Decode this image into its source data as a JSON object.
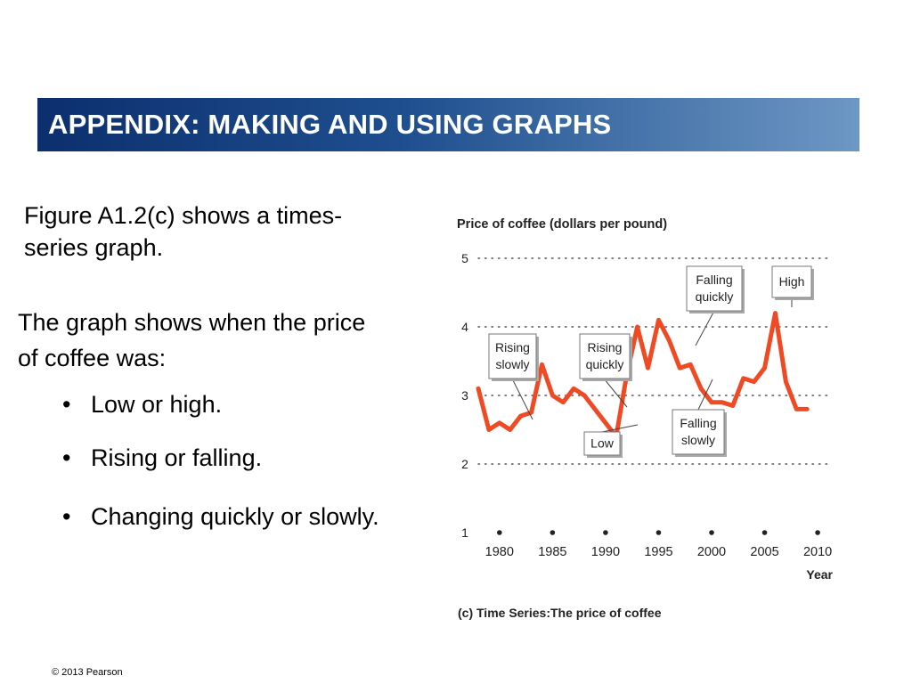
{
  "slide": {
    "title": "APPENDIX: MAKING AND USING GRAPHS",
    "intro": "Figure A1.2(c) shows a times-series graph.",
    "lead": "The graph shows when the price of coffee was:",
    "bullets": [
      "Low or high.",
      "Rising or falling.",
      "Changing quickly or slowly."
    ],
    "bullet_symbol": "•",
    "footer": "© 2013 Pearson"
  },
  "colors": {
    "title_bar_start": "#0c2f6e",
    "title_bar_end": "#6d97c4",
    "series_line": "#f04a24",
    "grid": "#555555"
  },
  "chart_data": {
    "type": "line",
    "title": "Price of coffee (dollars per pound)",
    "caption": "(c)  Time Series:The price of coffee",
    "xlabel": "Year",
    "ylabel": "",
    "xlim": [
      1978,
      2011
    ],
    "ylim": [
      1,
      5
    ],
    "x_ticks": [
      1980,
      1985,
      1990,
      1995,
      2000,
      2005,
      2010
    ],
    "y_ticks": [
      1,
      2,
      3,
      4,
      5
    ],
    "y_gridlines": [
      2,
      3,
      4,
      5
    ],
    "grid_style": "dotted horizontal",
    "x": [
      1978,
      1979,
      1980,
      1981,
      1982,
      1983,
      1984,
      1985,
      1986,
      1987,
      1988,
      1989,
      1990,
      1991,
      1992,
      1993,
      1994,
      1995,
      1996,
      1997,
      1998,
      1999,
      2000,
      2001,
      2002,
      2003,
      2004,
      2005,
      2006,
      2007,
      2008,
      2009
    ],
    "values": [
      3.1,
      2.5,
      2.6,
      2.5,
      2.7,
      2.75,
      3.45,
      3.0,
      2.9,
      3.1,
      3.0,
      2.8,
      2.6,
      2.4,
      3.3,
      4.0,
      3.4,
      4.1,
      3.8,
      3.4,
      3.45,
      3.1,
      2.9,
      2.9,
      2.85,
      3.25,
      3.2,
      3.4,
      4.2,
      3.2,
      2.8,
      2.8
    ],
    "annotations": [
      {
        "text": [
          "Rising",
          "slowly"
        ]
      },
      {
        "text": [
          "Rising",
          "quickly"
        ]
      },
      {
        "text": [
          "Falling",
          "quickly"
        ]
      },
      {
        "text": [
          "High"
        ]
      },
      {
        "text": [
          "Low"
        ]
      },
      {
        "text": [
          "Falling",
          "slowly"
        ]
      }
    ]
  }
}
